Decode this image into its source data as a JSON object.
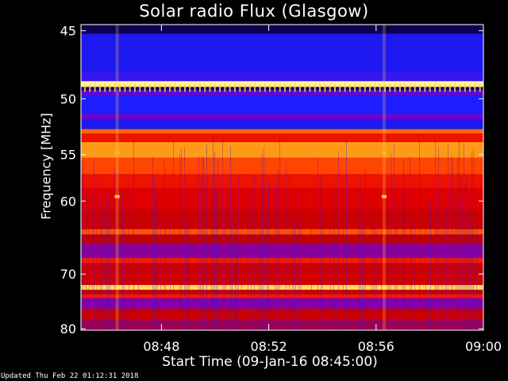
{
  "chart_data": {
    "type": "heatmap",
    "title": "Solar radio Flux (Glasgow)",
    "xlabel": "Start Time (09-Jan-16 08:45:00)",
    "ylabel": "Frequency [MHz]",
    "x_ticks": [
      "08:48",
      "08:52",
      "08:56",
      "09:00"
    ],
    "x_tick_minutes": [
      3,
      7,
      11,
      15
    ],
    "x_range_minutes": [
      0,
      15
    ],
    "y_ticks": [
      45,
      50,
      55,
      60,
      70,
      80
    ],
    "y_range": [
      44.6,
      80.3
    ],
    "y_scale": "reciprocal",
    "colormap": [
      "#000000",
      "#1a00b4",
      "#1e1eff",
      "#7a00c8",
      "#b40000",
      "#e10000",
      "#ff3000",
      "#ff7a00",
      "#ffcf40",
      "#ffffb4"
    ],
    "frequency_bands_mhz": [
      {
        "f0": 44.6,
        "f1": 45.2,
        "level": 0.05
      },
      {
        "f0": 45.2,
        "f1": 47.9,
        "level": 0.2
      },
      {
        "f0": 47.9,
        "f1": 48.6,
        "level": 0.25
      },
      {
        "f0": 48.6,
        "f1": 49.05,
        "level": 0.97
      },
      {
        "f0": 49.05,
        "f1": 49.3,
        "level": 0.05
      },
      {
        "f0": 49.3,
        "f1": 49.7,
        "level": 0.3
      },
      {
        "f0": 49.7,
        "f1": 51.3,
        "level": 0.22
      },
      {
        "f0": 51.3,
        "f1": 51.7,
        "level": 0.32
      },
      {
        "f0": 51.7,
        "f1": 52.6,
        "level": 0.2
      },
      {
        "f0": 52.6,
        "f1": 53.0,
        "level": 0.75
      },
      {
        "f0": 53.0,
        "f1": 53.8,
        "level": 0.6
      },
      {
        "f0": 53.8,
        "f1": 55.3,
        "level": 0.82
      },
      {
        "f0": 55.3,
        "f1": 57.0,
        "level": 0.7
      },
      {
        "f0": 57.0,
        "f1": 58.5,
        "level": 0.6
      },
      {
        "f0": 58.5,
        "f1": 61.0,
        "level": 0.55
      },
      {
        "f0": 61.0,
        "f1": 63.5,
        "level": 0.5
      },
      {
        "f0": 63.5,
        "f1": 64.2,
        "level": 0.72
      },
      {
        "f0": 64.2,
        "f1": 65.5,
        "level": 0.48
      },
      {
        "f0": 65.5,
        "f1": 67.5,
        "level": 0.36
      },
      {
        "f0": 67.5,
        "f1": 68.3,
        "level": 0.62
      },
      {
        "f0": 68.3,
        "f1": 70.0,
        "level": 0.5
      },
      {
        "f0": 70.0,
        "f1": 71.8,
        "level": 0.52
      },
      {
        "f0": 71.8,
        "f1": 72.6,
        "level": 0.92
      },
      {
        "f0": 72.6,
        "f1": 73.4,
        "level": 0.5
      },
      {
        "f0": 73.4,
        "f1": 74.1,
        "level": 0.62
      },
      {
        "f0": 74.1,
        "f1": 76.0,
        "level": 0.35
      },
      {
        "f0": 76.0,
        "f1": 78.2,
        "level": 0.5
      },
      {
        "f0": 78.2,
        "f1": 80.3,
        "level": 0.4
      }
    ],
    "bright_time_columns_minutes": [
      1.35,
      11.3
    ],
    "updated_text": "Updated Thu Feb 22 01:12:31 2018"
  }
}
